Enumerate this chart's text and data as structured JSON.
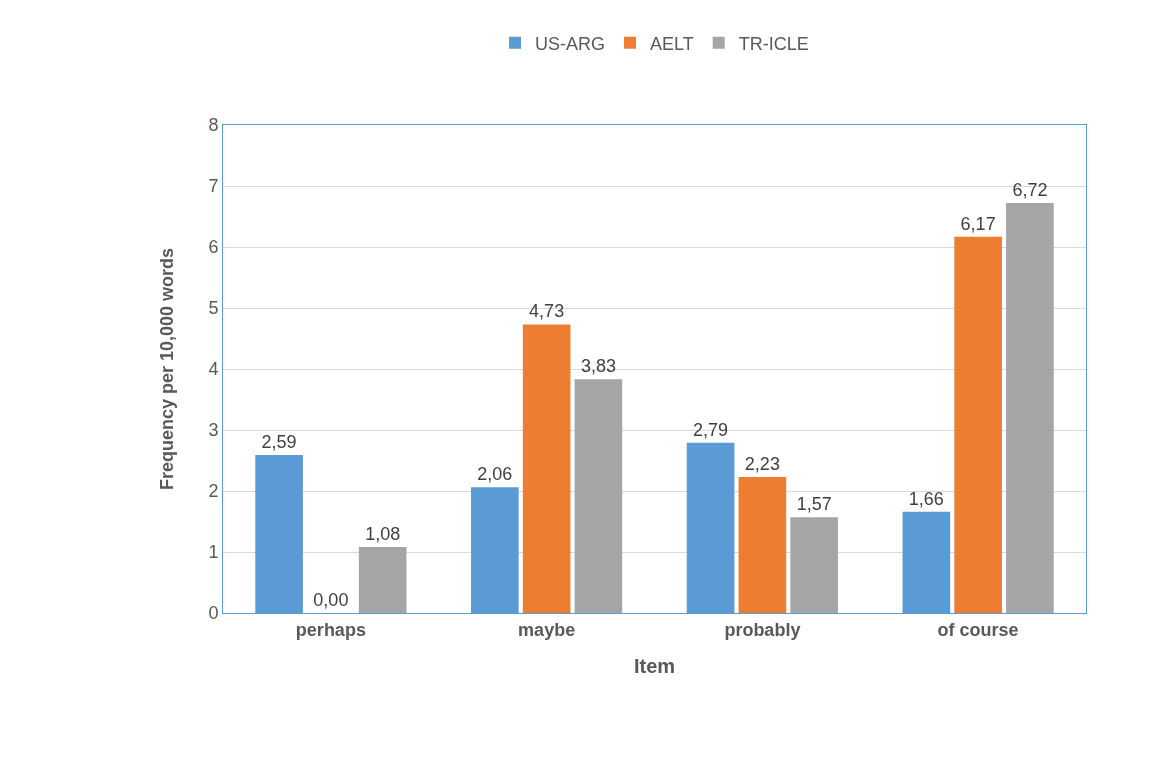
{
  "chart_data": {
    "type": "bar",
    "xlabel": "Item",
    "ylabel": "Frequency per 10,000 words",
    "categories": [
      "perhaps",
      "maybe",
      "probably",
      "of course"
    ],
    "series": [
      {
        "name": "US-ARG",
        "color": "#5b9bd5",
        "values": [
          2.59,
          2.06,
          2.79,
          1.66
        ],
        "value_labels": [
          "2,59",
          "2,06",
          "2,79",
          "1,66"
        ]
      },
      {
        "name": "AELT",
        "color": "#ed7d31",
        "values": [
          0,
          4.73,
          2.23,
          6.17
        ],
        "value_labels": [
          "0,00",
          "4,73",
          "2,23",
          "6,17"
        ]
      },
      {
        "name": "TR-ICLE",
        "color": "#a5a5a5",
        "values": [
          1.08,
          3.83,
          1.57,
          6.72
        ],
        "value_labels": [
          "1,08",
          "3,83",
          "1,57",
          "6,72"
        ]
      }
    ],
    "ylim": [
      0,
      8
    ],
    "yticks": [
      0,
      1,
      2,
      3,
      4,
      5,
      6,
      7,
      8
    ],
    "grid": "y",
    "legend": "top"
  }
}
